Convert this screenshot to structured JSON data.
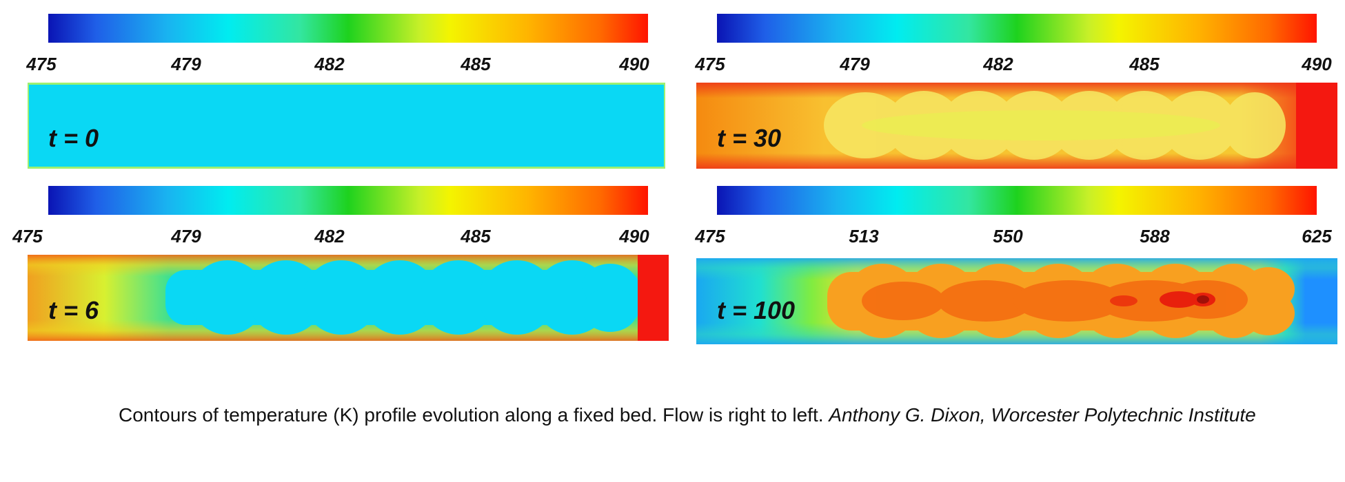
{
  "panels": [
    {
      "id": "p0",
      "time_label": "t = 0",
      "ticks": [
        "475",
        "479",
        "482",
        "485",
        "490"
      ]
    },
    {
      "id": "p30",
      "time_label": "t = 30",
      "ticks": [
        "475",
        "479",
        "482",
        "485",
        "490"
      ]
    },
    {
      "id": "p6",
      "time_label": "t = 6",
      "ticks": [
        "475",
        "479",
        "482",
        "485",
        "490"
      ]
    },
    {
      "id": "p100",
      "time_label": "t = 100",
      "ticks": [
        "475",
        "513",
        "550",
        "588",
        "625"
      ]
    }
  ],
  "caption": {
    "text": "Contours of temperature (K) profile evolution along a fixed bed. Flow is right to left. ",
    "author": "Anthony G. Dixon, Worcester Polytechnic Institute"
  },
  "colors": {
    "cold": "#0ad8f4",
    "warm_yellow": "#f2e640",
    "hot_orange": "#ff8c1a",
    "hot_red": "#f41810",
    "outlet_blue": "#1e90ff"
  }
}
